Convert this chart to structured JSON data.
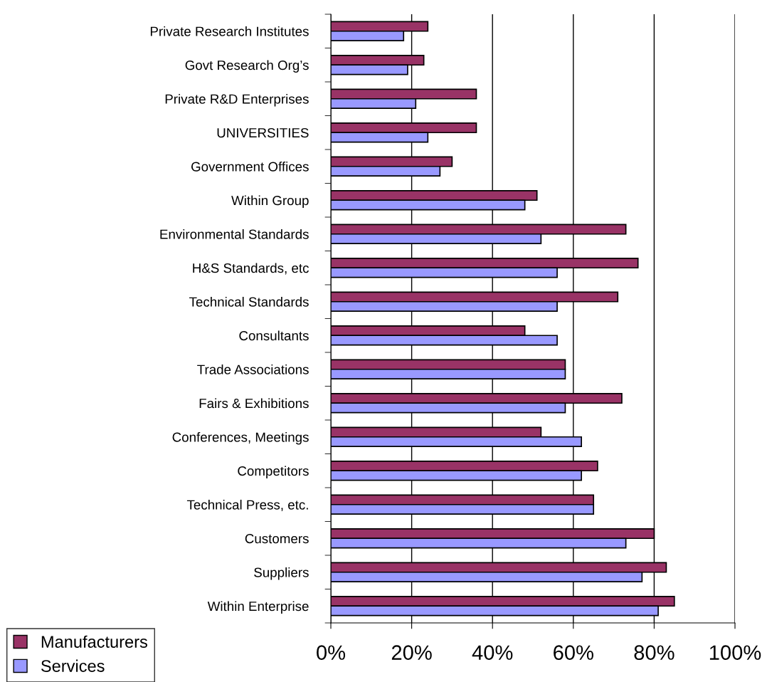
{
  "chart_data": {
    "type": "bar",
    "orientation": "horizontal",
    "categories": [
      "Private Research Institutes",
      "Govt Research Org’s",
      "Private R&D Enterprises",
      "UNIVERSITIES",
      "Government Offices",
      "Within Group",
      "Environmental Standards",
      "H&S Standards, etc",
      "Technical Standards",
      "Consultants",
      "Trade Associations",
      "Fairs & Exhibitions",
      "Conferences, Meetings",
      "Competitors",
      "Technical Press, etc.",
      "Customers",
      "Suppliers",
      "Within Enterprise"
    ],
    "series": [
      {
        "name": "Manufacturers",
        "color": "#993366",
        "values": [
          24,
          23,
          36,
          36,
          30,
          51,
          73,
          76,
          71,
          48,
          58,
          72,
          52,
          66,
          65,
          80,
          83,
          85
        ]
      },
      {
        "name": "Services",
        "color": "#9999ff",
        "values": [
          18,
          19,
          21,
          24,
          27,
          48,
          52,
          56,
          56,
          56,
          58,
          58,
          62,
          62,
          65,
          73,
          77,
          81
        ]
      }
    ],
    "xlim": [
      0,
      100
    ],
    "xticks": [
      {
        "value": 0,
        "label": "0%"
      },
      {
        "value": 20,
        "label": "20%"
      },
      {
        "value": 40,
        "label": "40%"
      },
      {
        "value": 60,
        "label": "60%"
      },
      {
        "value": 80,
        "label": "80%"
      },
      {
        "value": 100,
        "label": "100%"
      }
    ],
    "grid": "x",
    "legend": "bottom left"
  }
}
